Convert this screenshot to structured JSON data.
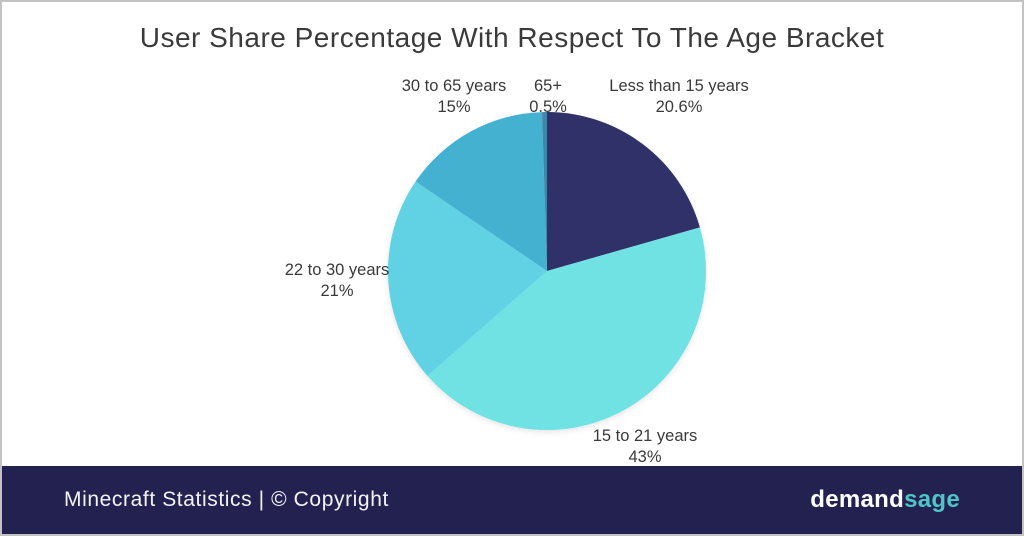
{
  "title": "User Share Percentage With Respect To The Age Bracket",
  "chart_data": {
    "type": "pie",
    "title": "User Share Percentage With Respect To The Age Bracket",
    "direction": "clockwise",
    "start_angle_deg": 0,
    "legend_position": "none",
    "labels_outside": true,
    "slices": [
      {
        "label": "Less than 15 years",
        "value": 20.6,
        "pct_text": "20.6%",
        "color": "#2f3168"
      },
      {
        "label": "15 to 21 years",
        "value": 43,
        "pct_text": "43%",
        "color": "#70e2e4"
      },
      {
        "label": "22 to 30 years",
        "value": 21,
        "pct_text": "21%",
        "color": "#61d2e3"
      },
      {
        "label": "30 to 65 years",
        "value": 15,
        "pct_text": "15%",
        "color": "#45b1d1"
      },
      {
        "label": "65+",
        "value": 0.5,
        "pct_text": "0.5%",
        "color": "#3f86ab"
      }
    ]
  },
  "footer": {
    "left_text": "Minecraft Statistics | © Copyright",
    "bg_color": "#23214f",
    "brand": {
      "first": "demand",
      "second": "sage",
      "second_color": "#4ec5c6"
    }
  }
}
